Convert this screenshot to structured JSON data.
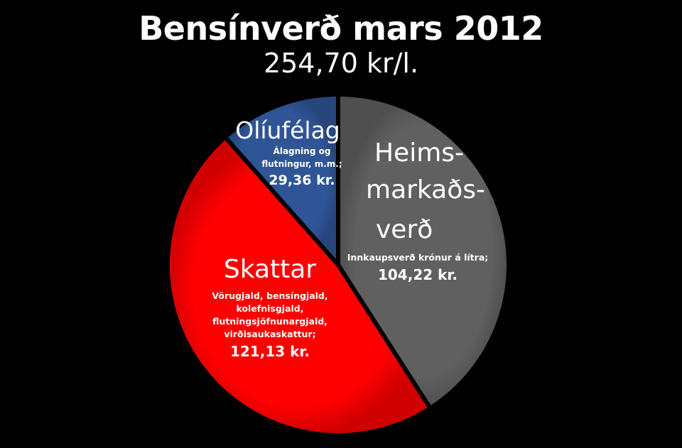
{
  "chart_data": {
    "type": "pie",
    "title": "Bensínverð mars 2012",
    "subtitle": "254,70 kr/l.",
    "slices": [
      {
        "name": "Heimsmarkaðsverð",
        "label_lines": [
          "Heims-",
          "markaðs-",
          "verð"
        ],
        "detail_lines": [
          "Innkaupsverð krónur á lítra;"
        ],
        "value": 104.22,
        "value_label": "104,22 kr.",
        "color": "#606060"
      },
      {
        "name": "Skattar",
        "label_lines": [
          "Skattar"
        ],
        "detail_lines": [
          "Vörugjald, bensíngjald,",
          "kolefnisgjald,",
          "flutningsjöfnunargjald,",
          "virðisaukaskattur;"
        ],
        "value": 121.13,
        "value_label": "121,13 kr.",
        "color": "#ff0000"
      },
      {
        "name": "Olíufélag",
        "label_lines": [
          "Olíufélag"
        ],
        "detail_lines": [
          "Álagning og",
          "flutningur, m.m.;"
        ],
        "value": 29.36,
        "value_label": "29,36 kr.",
        "color": "#2f5597"
      }
    ],
    "start_angle_deg": 0,
    "legend": "none"
  }
}
